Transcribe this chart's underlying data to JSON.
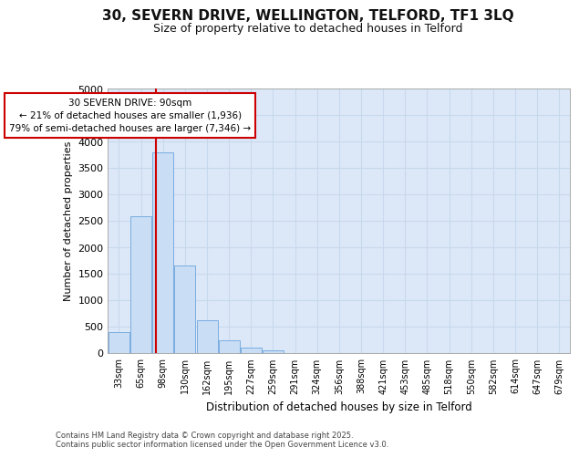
{
  "title_line1": "30, SEVERN DRIVE, WELLINGTON, TELFORD, TF1 3LQ",
  "title_line2": "Size of property relative to detached houses in Telford",
  "xlabel": "Distribution of detached houses by size in Telford",
  "ylabel": "Number of detached properties",
  "categories": [
    "33sqm",
    "65sqm",
    "98sqm",
    "130sqm",
    "162sqm",
    "195sqm",
    "227sqm",
    "259sqm",
    "291sqm",
    "324sqm",
    "356sqm",
    "388sqm",
    "421sqm",
    "453sqm",
    "485sqm",
    "518sqm",
    "550sqm",
    "582sqm",
    "614sqm",
    "647sqm",
    "679sqm"
  ],
  "values": [
    400,
    2580,
    3800,
    1660,
    620,
    240,
    100,
    50,
    0,
    0,
    0,
    0,
    0,
    0,
    0,
    0,
    0,
    0,
    0,
    0,
    0
  ],
  "bar_color": "#c9ddf5",
  "bar_edge_color": "#7aade0",
  "grid_color": "#c8d8ec",
  "red_line_x": 1.67,
  "annotation_text_line1": "30 SEVERN DRIVE: 90sqm",
  "annotation_text_line2": "← 21% of detached houses are smaller (1,936)",
  "annotation_text_line3": "79% of semi-detached houses are larger (7,346) →",
  "annotation_box_facecolor": "#ffffff",
  "annotation_border_color": "#cc0000",
  "ylim": [
    0,
    5000
  ],
  "yticks": [
    0,
    500,
    1000,
    1500,
    2000,
    2500,
    3000,
    3500,
    4000,
    4500,
    5000
  ],
  "footer_line1": "Contains HM Land Registry data © Crown copyright and database right 2025.",
  "footer_line2": "Contains public sector information licensed under the Open Government Licence v3.0.",
  "bg_color": "#ffffff",
  "plot_bg_color": "#dce8f8"
}
